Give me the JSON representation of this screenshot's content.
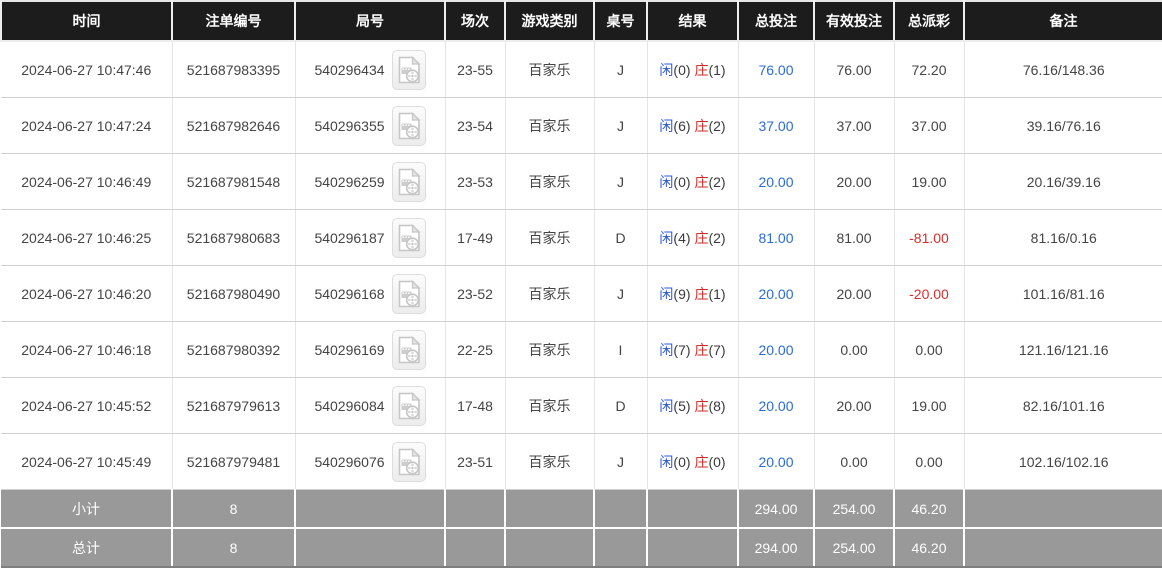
{
  "table": {
    "columns": [
      {
        "key": "time",
        "label": "时间"
      },
      {
        "key": "bet_no",
        "label": "注单编号"
      },
      {
        "key": "round_no",
        "label": "局号"
      },
      {
        "key": "session",
        "label": "场次"
      },
      {
        "key": "game_type",
        "label": "游戏类别"
      },
      {
        "key": "table_no",
        "label": "桌号"
      },
      {
        "key": "result",
        "label": "结果"
      },
      {
        "key": "total_bet",
        "label": "总投注"
      },
      {
        "key": "valid_bet",
        "label": "有效投注"
      },
      {
        "key": "payout",
        "label": "总派彩"
      },
      {
        "key": "remark",
        "label": "备注"
      }
    ],
    "rows": [
      {
        "time": "2024-06-27 10:47:46",
        "bet_no": "521687983395",
        "round_no": "540296434",
        "session": "23-55",
        "game_type": "百家乐",
        "table_no": "J",
        "result": {
          "player_label": "闲",
          "player_val": "(0)",
          "banker_label": "庄",
          "banker_val": "(1)"
        },
        "total_bet": "76.00",
        "valid_bet": "76.00",
        "payout": "72.20",
        "payout_negative": false,
        "remark": "76.16/148.36"
      },
      {
        "time": "2024-06-27 10:47:24",
        "bet_no": "521687982646",
        "round_no": "540296355",
        "session": "23-54",
        "game_type": "百家乐",
        "table_no": "J",
        "result": {
          "player_label": "闲",
          "player_val": "(6)",
          "banker_label": "庄",
          "banker_val": "(2)"
        },
        "total_bet": "37.00",
        "valid_bet": "37.00",
        "payout": "37.00",
        "payout_negative": false,
        "remark": "39.16/76.16"
      },
      {
        "time": "2024-06-27 10:46:49",
        "bet_no": "521687981548",
        "round_no": "540296259",
        "session": "23-53",
        "game_type": "百家乐",
        "table_no": "J",
        "result": {
          "player_label": "闲",
          "player_val": "(0)",
          "banker_label": "庄",
          "banker_val": "(2)"
        },
        "total_bet": "20.00",
        "valid_bet": "20.00",
        "payout": "19.00",
        "payout_negative": false,
        "remark": "20.16/39.16"
      },
      {
        "time": "2024-06-27 10:46:25",
        "bet_no": "521687980683",
        "round_no": "540296187",
        "session": "17-49",
        "game_type": "百家乐",
        "table_no": "D",
        "result": {
          "player_label": "闲",
          "player_val": "(4)",
          "banker_label": "庄",
          "banker_val": "(2)"
        },
        "total_bet": "81.00",
        "valid_bet": "81.00",
        "payout": "-81.00",
        "payout_negative": true,
        "remark": "81.16/0.16"
      },
      {
        "time": "2024-06-27 10:46:20",
        "bet_no": "521687980490",
        "round_no": "540296168",
        "session": "23-52",
        "game_type": "百家乐",
        "table_no": "J",
        "result": {
          "player_label": "闲",
          "player_val": "(9)",
          "banker_label": "庄",
          "banker_val": "(1)"
        },
        "total_bet": "20.00",
        "valid_bet": "20.00",
        "payout": "-20.00",
        "payout_negative": true,
        "remark": "101.16/81.16"
      },
      {
        "time": "2024-06-27 10:46:18",
        "bet_no": "521687980392",
        "round_no": "540296169",
        "session": "22-25",
        "game_type": "百家乐",
        "table_no": "I",
        "result": {
          "player_label": "闲",
          "player_val": "(7)",
          "banker_label": "庄",
          "banker_val": "(7)"
        },
        "total_bet": "20.00",
        "valid_bet": "0.00",
        "payout": "0.00",
        "payout_negative": false,
        "remark": "121.16/121.16"
      },
      {
        "time": "2024-06-27 10:45:52",
        "bet_no": "521687979613",
        "round_no": "540296084",
        "session": "17-48",
        "game_type": "百家乐",
        "table_no": "D",
        "result": {
          "player_label": "闲",
          "player_val": "(5)",
          "banker_label": "庄",
          "banker_val": "(8)"
        },
        "total_bet": "20.00",
        "valid_bet": "20.00",
        "payout": "19.00",
        "payout_negative": false,
        "remark": "82.16/101.16"
      },
      {
        "time": "2024-06-27 10:45:49",
        "bet_no": "521687979481",
        "round_no": "540296076",
        "session": "23-51",
        "game_type": "百家乐",
        "table_no": "J",
        "result": {
          "player_label": "闲",
          "player_val": "(0)",
          "banker_label": "庄",
          "banker_val": "(0)"
        },
        "total_bet": "20.00",
        "valid_bet": "0.00",
        "payout": "0.00",
        "payout_negative": false,
        "remark": "102.16/102.16"
      }
    ],
    "summary_rows": [
      {
        "label": "小计",
        "count": "8",
        "total_bet": "294.00",
        "valid_bet": "254.00",
        "payout": "46.20"
      },
      {
        "label": "总计",
        "count": "8",
        "total_bet": "294.00",
        "valid_bet": "254.00",
        "payout": "46.20"
      }
    ],
    "colors": {
      "header_bg": "#1c1c1c",
      "header_text": "#ffffff",
      "row_text": "#444444",
      "player_blue": "#2a57cf",
      "banker_red": "#cf2a2a",
      "bet_link_blue": "#2a6bd5",
      "negative_red": "#dd2a2a",
      "summary_bg": "#999999"
    },
    "icons": {
      "round_video_icon": "video-file-icon"
    }
  }
}
